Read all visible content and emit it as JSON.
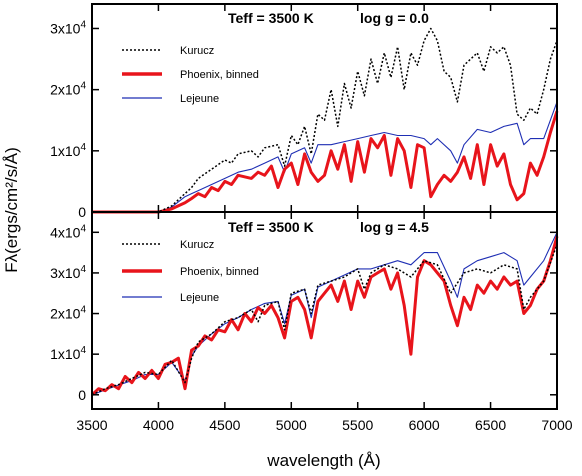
{
  "chart_data": {
    "type": "line",
    "x_axis": {
      "label": "wavelength (Å)",
      "range": [
        3500,
        7000
      ],
      "ticks": [
        3500,
        4000,
        4500,
        5000,
        5500,
        6000,
        6500,
        7000
      ],
      "tick_labels": [
        "3500",
        "4000",
        "4500",
        "5000",
        "5500",
        "6000",
        "6500",
        "7000"
      ]
    },
    "y_axis_label": "Fλ(ergs/cm²/s/Å)",
    "colors": {
      "Kurucz": "#000000",
      "Phoenix, binned": "#e8141b",
      "Lejeune": "#1f2fb4"
    },
    "panels": [
      {
        "title_left": "Teff = 3500 K",
        "title_right": "log g = 0.0",
        "ylim": [
          0,
          34000
        ],
        "yticks": [
          0,
          10000,
          20000,
          30000
        ],
        "ytick_labels": [
          {
            "base": "0",
            "exp": ""
          },
          {
            "base": "1x10",
            "exp": "4"
          },
          {
            "base": "2x10",
            "exp": "4"
          },
          {
            "base": "3x10",
            "exp": "4"
          }
        ],
        "legend": [
          "Kurucz",
          "Phoenix, binned",
          "Lejeune"
        ],
        "series": [
          {
            "name": "Kurucz",
            "x": [
              3500,
              3600,
              3700,
              3800,
              3900,
              4000,
              4100,
              4200,
              4250,
              4300,
              4400,
              4500,
              4550,
              4600,
              4700,
              4750,
              4800,
              4900,
              4950,
              5000,
              5050,
              5100,
              5150,
              5200,
              5250,
              5300,
              5350,
              5400,
              5450,
              5500,
              5550,
              5600,
              5650,
              5700,
              5750,
              5800,
              5850,
              5900,
              5950,
              6000,
              6050,
              6100,
              6150,
              6200,
              6250,
              6300,
              6350,
              6400,
              6450,
              6500,
              6550,
              6600,
              6650,
              6700,
              6750,
              6800,
              6850,
              6900,
              6950,
              7000
            ],
            "y": [
              0,
              0,
              0,
              0,
              0,
              0,
              1000,
              3000,
              4000,
              5500,
              7000,
              8500,
              8000,
              9500,
              10000,
              9000,
              10500,
              11000,
              7500,
              12500,
              11000,
              14000,
              9500,
              16000,
              15000,
              20000,
              14000,
              21000,
              17000,
              23000,
              19000,
              25000,
              21000,
              26000,
              22000,
              27000,
              20000,
              26000,
              24000,
              28000,
              30000,
              28000,
              23000,
              22000,
              18000,
              24000,
              25000,
              26000,
              23000,
              27000,
              26000,
              27000,
              24000,
              16000,
              15000,
              17000,
              16000,
              20000,
              25000,
              28000
            ]
          },
          {
            "name": "Phoenix, binned",
            "x": [
              3500,
              3600,
              3700,
              3800,
              3900,
              4000,
              4100,
              4200,
              4250,
              4300,
              4350,
              4400,
              4450,
              4500,
              4550,
              4600,
              4700,
              4750,
              4800,
              4850,
              4900,
              4950,
              5000,
              5050,
              5100,
              5150,
              5200,
              5250,
              5300,
              5350,
              5400,
              5450,
              5500,
              5550,
              5600,
              5650,
              5700,
              5750,
              5800,
              5850,
              5900,
              5950,
              6000,
              6050,
              6100,
              6150,
              6200,
              6250,
              6300,
              6350,
              6400,
              6450,
              6500,
              6550,
              6600,
              6650,
              6700,
              6750,
              6800,
              6850,
              6900,
              6950,
              7000
            ],
            "y": [
              0,
              0,
              0,
              0,
              0,
              0,
              500,
              1500,
              2200,
              3000,
              2500,
              4000,
              3500,
              5000,
              4500,
              6000,
              5500,
              6500,
              6000,
              7500,
              4000,
              7000,
              8000,
              4500,
              9500,
              6500,
              5000,
              6000,
              10000,
              7000,
              11000,
              5000,
              11500,
              6500,
              12000,
              10500,
              12500,
              6000,
              12000,
              10000,
              4000,
              11000,
              10500,
              2500,
              4500,
              6000,
              5000,
              6500,
              9000,
              5500,
              11000,
              4500,
              11000,
              7500,
              9500,
              4500,
              2000,
              3000,
              8000,
              6000,
              9000,
              13000,
              16500
            ]
          },
          {
            "name": "Lejeune",
            "x": [
              3500,
              3600,
              3700,
              3800,
              3900,
              4000,
              4100,
              4200,
              4250,
              4300,
              4400,
              4500,
              4600,
              4700,
              4800,
              4900,
              4950,
              5000,
              5100,
              5150,
              5200,
              5300,
              5400,
              5500,
              5600,
              5700,
              5800,
              5900,
              6000,
              6050,
              6100,
              6200,
              6250,
              6300,
              6400,
              6500,
              6600,
              6700,
              6750,
              6800,
              6900,
              7000
            ],
            "y": [
              0,
              0,
              0,
              0,
              0,
              0,
              800,
              2500,
              3000,
              3500,
              4500,
              5500,
              6500,
              7000,
              8000,
              9000,
              6500,
              9500,
              10500,
              8000,
              11000,
              11000,
              11500,
              12000,
              12500,
              13000,
              12500,
              12500,
              12000,
              11000,
              12000,
              10000,
              8000,
              11000,
              13500,
              13000,
              14000,
              14500,
              11000,
              12000,
              12000,
              18000
            ]
          }
        ]
      },
      {
        "title_left": "Teff = 3500 K",
        "title_right": "log g = 4.5",
        "ylim": [
          -3500,
          45000
        ],
        "yticks": [
          0,
          10000,
          20000,
          30000,
          40000
        ],
        "ytick_labels": [
          {
            "base": "0",
            "exp": ""
          },
          {
            "base": "1x10",
            "exp": "4"
          },
          {
            "base": "2x10",
            "exp": "4"
          },
          {
            "base": "3x10",
            "exp": "4"
          },
          {
            "base": "4x10",
            "exp": "4"
          }
        ],
        "legend": [
          "Kurucz",
          "Phoenix, binned",
          "Lejeune"
        ],
        "series": [
          {
            "name": "Kurucz",
            "x": [
              3500,
              3600,
              3700,
              3800,
              3900,
              4000,
              4100,
              4200,
              4250,
              4300,
              4400,
              4500,
              4600,
              4700,
              4750,
              4800,
              4900,
              4950,
              5000,
              5100,
              5150,
              5200,
              5300,
              5400,
              5500,
              5550,
              5600,
              5700,
              5800,
              5900,
              6000,
              6100,
              6200,
              6300,
              6400,
              6500,
              6600,
              6700,
              6750,
              6800,
              6900,
              7000
            ],
            "y": [
              0,
              1500,
              2500,
              4000,
              5500,
              5000,
              8500,
              3000,
              9000,
              13000,
              15000,
              18000,
              19000,
              21000,
              18000,
              22000,
              23000,
              16000,
              25000,
              26000,
              20000,
              27000,
              28000,
              29000,
              31000,
              26000,
              30000,
              32000,
              31000,
              29000,
              33000,
              32000,
              25000,
              30000,
              31000,
              30000,
              32000,
              31000,
              21000,
              24000,
              28000,
              37000
            ]
          },
          {
            "name": "Phoenix, binned",
            "x": [
              3500,
              3550,
              3600,
              3650,
              3700,
              3750,
              3800,
              3850,
              3900,
              3950,
              4000,
              4050,
              4100,
              4150,
              4200,
              4250,
              4300,
              4350,
              4400,
              4450,
              4500,
              4550,
              4600,
              4650,
              4700,
              4750,
              4800,
              4850,
              4900,
              4950,
              5000,
              5050,
              5100,
              5150,
              5200,
              5250,
              5300,
              5350,
              5400,
              5450,
              5500,
              5550,
              5600,
              5650,
              5700,
              5750,
              5800,
              5850,
              5900,
              5950,
              6000,
              6050,
              6100,
              6150,
              6200,
              6250,
              6300,
              6350,
              6400,
              6450,
              6500,
              6550,
              6600,
              6650,
              6700,
              6750,
              6800,
              6850,
              6900,
              6950,
              7000
            ],
            "y": [
              0,
              1500,
              1000,
              2500,
              1500,
              4500,
              3000,
              5500,
              4000,
              6000,
              4000,
              7500,
              8000,
              9000,
              1500,
              11000,
              12000,
              14500,
              13500,
              16000,
              15500,
              18500,
              16000,
              20000,
              18000,
              21500,
              20000,
              22000,
              19000,
              14000,
              23000,
              24000,
              21000,
              14000,
              23000,
              25000,
              27000,
              23000,
              28000,
              21000,
              28000,
              24000,
              29000,
              30000,
              31000,
              26000,
              30000,
              22000,
              10000,
              29000,
              33000,
              32000,
              30000,
              28000,
              22000,
              17000,
              24000,
              21000,
              27000,
              25000,
              28000,
              26000,
              29000,
              27000,
              28000,
              20000,
              22000,
              26000,
              28000,
              33000,
              39000
            ]
          },
          {
            "name": "Lejeune",
            "x": [
              3500,
              3600,
              3700,
              3800,
              3900,
              4000,
              4100,
              4200,
              4250,
              4300,
              4400,
              4500,
              4600,
              4700,
              4800,
              4900,
              4950,
              5000,
              5100,
              5150,
              5200,
              5300,
              5400,
              5500,
              5600,
              5700,
              5800,
              5900,
              6000,
              6100,
              6200,
              6250,
              6300,
              6400,
              6500,
              6600,
              6700,
              6750,
              6800,
              6900,
              7000
            ],
            "y": [
              0,
              1200,
              2400,
              3500,
              5000,
              5000,
              8000,
              3500,
              9500,
              12000,
              15000,
              17500,
              19000,
              21000,
              22500,
              23000,
              17500,
              24500,
              26000,
              19000,
              26500,
              28000,
              29500,
              31000,
              31000,
              32000,
              33000,
              32000,
              35000,
              35000,
              28000,
              24000,
              31000,
              33000,
              34000,
              35000,
              33000,
              27000,
              29000,
              33000,
              40000
            ]
          }
        ]
      }
    ]
  }
}
